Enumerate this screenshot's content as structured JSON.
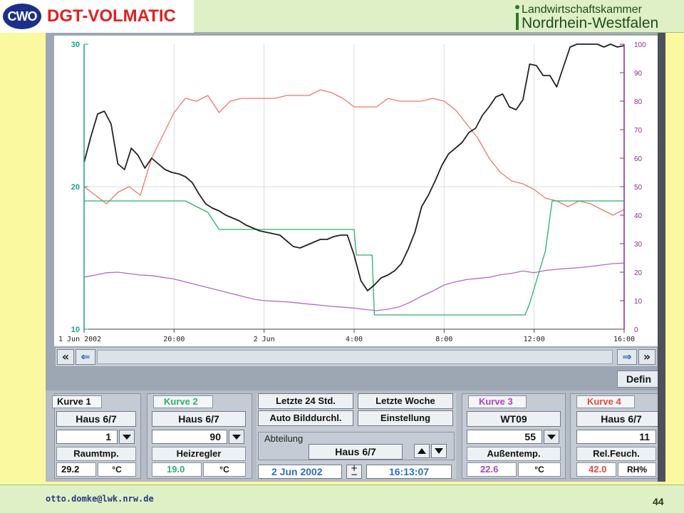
{
  "header": {
    "logo_left_badge": "CWO",
    "logo_left_text": "DGT-VOLMATIC",
    "logo_right_line1": "Landwirtschaftskammer",
    "logo_right_line2": "Nordrhein-Westfalen"
  },
  "chart_data": {
    "type": "line",
    "x_tick_labels": [
      "1 Jun 2002",
      "20:00",
      "2 Jun",
      "4:00",
      "8:00",
      "12:00",
      "16:00"
    ],
    "x_hours_from_start": [
      0,
      4,
      8,
      12,
      16,
      20,
      24
    ],
    "left_axis": {
      "ticks": [
        "10",
        "20",
        "30"
      ],
      "ylim": [
        10,
        30
      ],
      "color": "#1aa28c"
    },
    "right_axis": {
      "ticks": [
        "0",
        "10",
        "20",
        "30",
        "40",
        "50",
        "60",
        "70",
        "80",
        "90",
        "100"
      ],
      "ylim": [
        0,
        100
      ],
      "color": "#8a2a8a"
    },
    "grid": true,
    "series": [
      {
        "name": "Raumtmp.",
        "axis": "left",
        "color": "#222222",
        "x": [
          0.0,
          0.3,
          0.6,
          0.9,
          1.2,
          1.5,
          1.8,
          2.1,
          2.4,
          2.7,
          3.0,
          3.3,
          3.6,
          3.9,
          4.2,
          4.5,
          4.8,
          5.1,
          5.4,
          5.7,
          6.0,
          6.3,
          6.6,
          6.9,
          7.2,
          7.5,
          7.8,
          8.1,
          8.4,
          8.7,
          9.0,
          9.3,
          9.6,
          9.9,
          10.2,
          10.5,
          10.8,
          11.1,
          11.4,
          11.7,
          12.0,
          12.3,
          12.6,
          12.9,
          13.2,
          13.5,
          13.8,
          14.1,
          14.4,
          14.7,
          15.0,
          15.3,
          15.6,
          15.9,
          16.2,
          16.5,
          16.8,
          17.1,
          17.4,
          17.7,
          18.0,
          18.3,
          18.6,
          18.9,
          19.2,
          19.5,
          19.8,
          20.1,
          20.4,
          20.7,
          21.0,
          21.3,
          21.6,
          21.9,
          22.2,
          22.5,
          22.8,
          23.1,
          23.4,
          23.7,
          24.0
        ],
        "y": [
          21.7,
          23.5,
          25.1,
          25.3,
          24.4,
          21.6,
          21.2,
          22.7,
          22.2,
          21.3,
          22.0,
          21.6,
          21.2,
          21.0,
          20.9,
          20.7,
          20.3,
          19.5,
          18.8,
          18.5,
          18.3,
          18.0,
          17.8,
          17.6,
          17.3,
          17.1,
          16.9,
          16.8,
          16.7,
          16.6,
          16.2,
          15.8,
          15.7,
          15.9,
          16.1,
          16.3,
          16.3,
          16.5,
          16.6,
          16.6,
          15.2,
          13.4,
          12.7,
          13.1,
          13.6,
          13.8,
          14.1,
          14.6,
          15.6,
          16.8,
          18.6,
          19.4,
          20.4,
          21.5,
          22.3,
          22.7,
          23.1,
          23.8,
          24.1,
          25.0,
          25.6,
          26.3,
          26.5,
          25.6,
          25.4,
          26.1,
          28.6,
          28.5,
          27.8,
          27.8,
          27.0,
          28.4,
          29.8,
          30.0,
          30.0,
          30.0,
          30.0,
          29.8,
          30.0,
          29.8,
          29.9
        ]
      },
      {
        "name": "Heizregler",
        "axis": "left",
        "color": "#2cb06a",
        "x": [
          0.0,
          4.5,
          5.5,
          6.0,
          12.0,
          12.1,
          12.8,
          12.9,
          19.6,
          19.8,
          20.5,
          20.8,
          24.0
        ],
        "y": [
          19.0,
          19.0,
          18.2,
          17.0,
          17.0,
          15.2,
          15.2,
          11.0,
          11.0,
          11.8,
          15.5,
          19.0,
          19.0
        ]
      },
      {
        "name": "Außentemp.",
        "axis": "right",
        "color": "#b26ac4",
        "x": [
          0.0,
          0.5,
          1.0,
          1.5,
          2.0,
          2.5,
          3.0,
          3.5,
          4.0,
          4.5,
          5.0,
          5.5,
          6.0,
          6.5,
          7.0,
          7.5,
          8.0,
          8.5,
          9.0,
          9.5,
          10.0,
          10.5,
          11.0,
          11.5,
          12.0,
          12.5,
          13.0,
          13.5,
          14.0,
          14.5,
          15.0,
          15.5,
          16.0,
          16.5,
          17.0,
          17.5,
          18.0,
          18.5,
          19.0,
          19.5,
          20.0,
          20.5,
          21.0,
          21.5,
          22.0,
          22.5,
          23.0,
          23.5,
          24.0
        ],
        "y": [
          18.3,
          19.0,
          19.8,
          20.0,
          19.5,
          19.0,
          18.8,
          18.2,
          17.6,
          16.6,
          15.6,
          14.6,
          13.6,
          12.6,
          11.6,
          10.6,
          10.0,
          9.8,
          9.6,
          9.2,
          8.8,
          8.4,
          8.0,
          7.7,
          7.4,
          6.9,
          6.5,
          7.0,
          7.8,
          9.5,
          11.6,
          13.4,
          15.5,
          16.6,
          17.4,
          17.8,
          18.2,
          19.1,
          19.6,
          20.4,
          19.8,
          20.6,
          21.0,
          21.3,
          21.6,
          22.0,
          22.5,
          23.0,
          23.2
        ]
      },
      {
        "name": "Rel.Feuch.",
        "axis": "right",
        "color": "#f2766a",
        "x": [
          0.0,
          0.5,
          1.0,
          1.5,
          2.0,
          2.5,
          3.0,
          3.5,
          4.0,
          4.5,
          5.0,
          5.5,
          6.0,
          6.5,
          7.0,
          7.5,
          8.0,
          8.5,
          9.0,
          9.5,
          10.0,
          10.5,
          11.0,
          11.5,
          12.0,
          12.5,
          13.0,
          13.5,
          14.0,
          14.5,
          15.0,
          15.5,
          16.0,
          16.5,
          17.0,
          17.5,
          18.0,
          18.5,
          19.0,
          19.5,
          20.0,
          20.5,
          21.0,
          21.5,
          22.0,
          22.5,
          23.0,
          23.5,
          24.0
        ],
        "y": [
          50.0,
          47.0,
          44.0,
          48.0,
          50.0,
          47.0,
          60.0,
          68.0,
          76.0,
          81.0,
          80.0,
          82.0,
          76.0,
          80.0,
          81.0,
          81.0,
          81.0,
          81.0,
          82.0,
          82.0,
          82.0,
          84.0,
          83.0,
          81.0,
          78.0,
          78.0,
          78.0,
          81.0,
          80.0,
          80.0,
          80.0,
          81.0,
          80.0,
          77.0,
          72.0,
          67.0,
          60.0,
          55.0,
          52.0,
          51.0,
          49.0,
          46.0,
          45.0,
          43.0,
          45.0,
          44.0,
          42.0,
          40.0,
          42.0
        ]
      }
    ]
  },
  "scrollbar": {
    "left_double": "«",
    "left_arrow": "⇐",
    "right_arrow": "⇒",
    "right_double": "»"
  },
  "defin_button": "Defin",
  "kurve1": {
    "tag": "Kurve 1",
    "tag_color": "#111111",
    "haus": "Haus 6/7",
    "index": "1",
    "label": "Raumtmp.",
    "value": "29.2",
    "value_color": "#111111",
    "unit": "°C"
  },
  "kurve2": {
    "tag": "Kurve 2",
    "tag_color": "#2cb06a",
    "haus": "Haus 6/7",
    "index": "90",
    "label": "Heizregler",
    "value": "19.0",
    "value_color": "#2cb06a",
    "unit": "°C"
  },
  "center": {
    "btn_24h": "Letzte 24 Std.",
    "btn_week": "Letzte Woche",
    "btn_auto": "Auto Bilddurchl.",
    "btn_setting": "Einstellung",
    "abteilung_label": "Abteilung",
    "abteilung_value": "Haus 6/7",
    "date": "2 Jun 2002",
    "time": "16:13:07"
  },
  "kurve3": {
    "tag": "Kurve 3",
    "tag_color": "#b040c0",
    "haus": "WT09",
    "index": "55",
    "label": "Außentemp.",
    "value": "22.6",
    "value_color": "#b040c0",
    "unit": "°C"
  },
  "kurve4": {
    "tag": "Kurve 4",
    "tag_color": "#e24a3a",
    "haus": "Haus 6/7",
    "index": "11",
    "label": "Rel.Feuch.",
    "value": "42.0",
    "value_color": "#e24a3a",
    "unit": "RH%"
  },
  "footer": {
    "email": "otto.domke@lwk.nrw.de",
    "page_number": "44"
  }
}
